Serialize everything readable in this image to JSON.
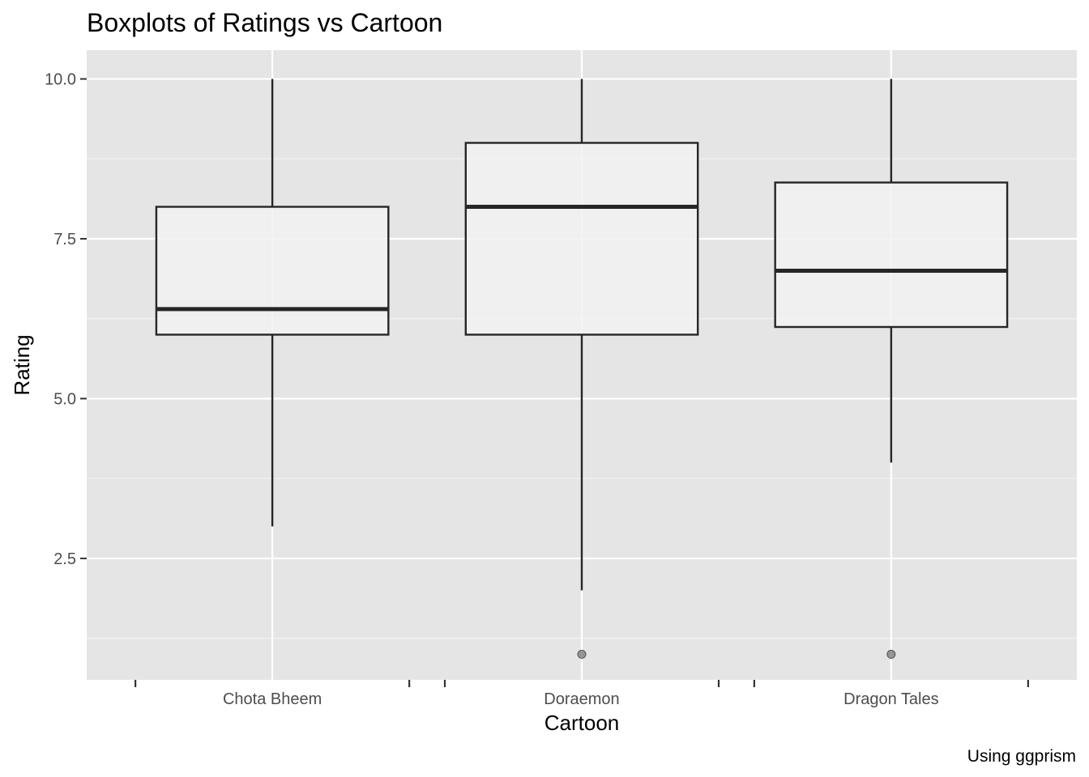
{
  "chart_data": {
    "type": "boxplot",
    "title": "Boxplots of Ratings vs Cartoon",
    "xlabel": "Cartoon",
    "ylabel": "Rating",
    "caption": "Using ggprism",
    "categories": [
      "Chota Bheem",
      "Doraemon",
      "Dragon Tales"
    ],
    "ylim": [
      0.6,
      10.45
    ],
    "yticks": [
      2.5,
      5.0,
      7.5,
      10.0
    ],
    "ytick_labels": [
      "2.5",
      "5.0",
      "7.5",
      "10.0"
    ],
    "grid": true,
    "boxes": [
      {
        "category": "Chota Bheem",
        "whisker_low": 3.0,
        "q1": 6.0,
        "median": 6.4,
        "q3": 8.0,
        "whisker_high": 10.0,
        "outliers": []
      },
      {
        "category": "Doraemon",
        "whisker_low": 2.0,
        "q1": 6.0,
        "median": 8.0,
        "q3": 9.0,
        "whisker_high": 10.0,
        "outliers": [
          1.0
        ]
      },
      {
        "category": "Dragon Tales",
        "whisker_low": 4.0,
        "q1": 6.12,
        "median": 7.0,
        "q3": 8.38,
        "whisker_high": 10.0,
        "outliers": [
          1.0
        ]
      }
    ],
    "colors": {
      "panel_background": "#e5e5e5",
      "grid_major": "#ffffff",
      "grid_minor": "#f2f2f2",
      "box_fill": "#f2f2f2",
      "box_stroke": "#262626",
      "outlier": "#7f7f7f"
    }
  }
}
